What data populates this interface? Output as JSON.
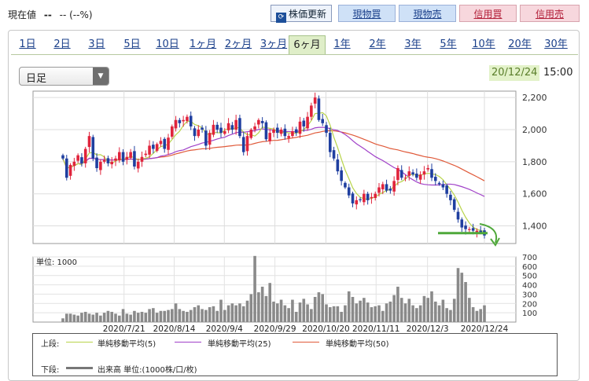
{
  "header": {
    "price_label": "現在値",
    "price_value": "--",
    "price_change": "-- (--%)",
    "update_button": "株価更新",
    "buttons": [
      "現物買",
      "現物売",
      "信用買",
      "信用売"
    ]
  },
  "tabs": [
    "1日",
    "2日",
    "3日",
    "5日",
    "10日",
    "1ヶ月",
    "2ヶ月",
    "3ヶ月",
    "6ヶ月",
    "1年",
    "2年",
    "3年",
    "5年",
    "10年",
    "20年",
    "30年"
  ],
  "active_tab": "6ヶ月",
  "select": {
    "value": "日足"
  },
  "timestamp": {
    "date": "20/12/24",
    "time": "15:00"
  },
  "legend": {
    "upper_label": "上段:",
    "lower_label": "下段:",
    "ma5": "単純移動平均(5)",
    "ma25": "単純移動平均(25)",
    "ma50": "単純移動平均(50)",
    "volume": "出来高 単位:(1000株/口/枚)",
    "colors": {
      "ma5": "#b8d44a",
      "ma25": "#a040c8",
      "ma50": "#e05a3a",
      "up": "#e0243c",
      "down": "#1f3fa0",
      "volume": "#8a8a8a",
      "support": "#4fa83a"
    }
  },
  "chart_data": [
    {
      "type": "candlestick",
      "title": "",
      "y_ticks": [
        1400,
        1600,
        1800,
        2000,
        2200
      ],
      "ylim": [
        1290,
        2240
      ],
      "x_tick_labels": [
        "2020/7/21",
        "2020/8/14",
        "2020/9/4",
        "2020/9/29",
        "2020/10/20",
        "2020/11/11",
        "2020/12/3",
        "2020/12/24"
      ],
      "close_series": [
        1820,
        1700,
        1780,
        1800,
        1840,
        1790,
        1880,
        1960,
        1820,
        1760,
        1800,
        1810,
        1790,
        1800,
        1820,
        1860,
        1800,
        1830,
        1860,
        1770,
        1800,
        1830,
        1850,
        1900,
        1880,
        1910,
        1930,
        1880,
        1950,
        2020,
        2060,
        2040,
        2060,
        2080,
        2020,
        1960,
        2000,
        2000,
        1900,
        1980,
        2030,
        2000,
        1980,
        1990,
        2040,
        2000,
        2060,
        1960,
        1860,
        1960,
        2000,
        2020,
        2060,
        2040,
        1940,
        1980,
        2000,
        1980,
        2000,
        1960,
        1960,
        1990,
        1980,
        2050,
        2020,
        2080,
        2150,
        2200,
        2060,
        2040,
        1980,
        1860,
        1820,
        1740,
        1680,
        1640,
        1590,
        1540,
        1560,
        1560,
        1600,
        1560,
        1580,
        1600,
        1640,
        1660,
        1620,
        1620,
        1680,
        1760,
        1700,
        1700,
        1740,
        1720,
        1700,
        1720,
        1740,
        1760,
        1700,
        1680,
        1660,
        1640,
        1600,
        1560,
        1500,
        1440,
        1390,
        1380,
        1380,
        1370,
        1370,
        1360,
        1340
      ],
      "ma_labels": [
        "単純移動平均(5)",
        "単純移動平均(25)",
        "単純移動平均(50)"
      ],
      "annotations": [
        "support-line",
        "down-arrow"
      ]
    },
    {
      "type": "bar",
      "title": "",
      "unit_label": "単位: 1000",
      "y_ticks": [
        100,
        200,
        300,
        400,
        500,
        600,
        700
      ],
      "ylim": [
        0,
        700
      ],
      "values": [
        40,
        90,
        90,
        80,
        70,
        100,
        110,
        90,
        80,
        100,
        70,
        100,
        120,
        110,
        90,
        70,
        140,
        90,
        80,
        120,
        100,
        110,
        100,
        140,
        150,
        100,
        120,
        120,
        130,
        140,
        200,
        140,
        120,
        110,
        130,
        160,
        180,
        140,
        130,
        160,
        170,
        120,
        240,
        130,
        180,
        200,
        180,
        200,
        170,
        230,
        300,
        710,
        320,
        380,
        280,
        420,
        220,
        200,
        240,
        180,
        150,
        240,
        110,
        210,
        250,
        190,
        140,
        270,
        320,
        300,
        190,
        160,
        170,
        170,
        110,
        180,
        330,
        270,
        200,
        230,
        260,
        210,
        160,
        170,
        180,
        120,
        200,
        220,
        290,
        380,
        260,
        200,
        250,
        180,
        150,
        180,
        280,
        260,
        330,
        220,
        180,
        240,
        150,
        130,
        250,
        580,
        530,
        430,
        260,
        160,
        120,
        140,
        180
      ]
    }
  ]
}
